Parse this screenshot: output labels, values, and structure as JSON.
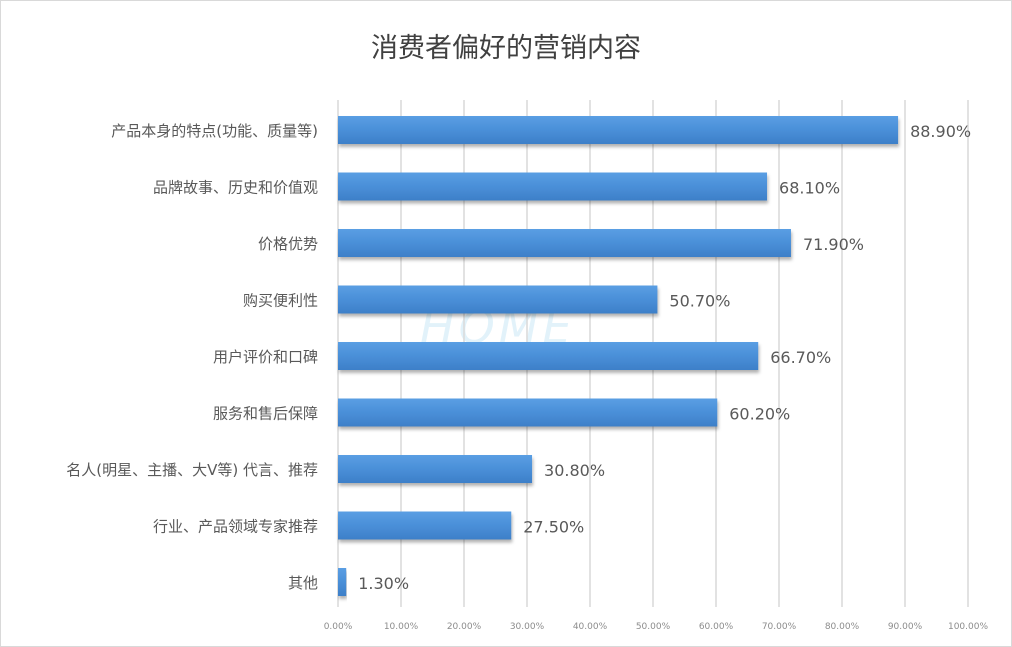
{
  "chart_data": {
    "type": "bar",
    "orientation": "horizontal",
    "title": "消费者偏好的营销内容",
    "categories": [
      "产品本身的特点(功能、质量等)",
      "品牌故事、历史和价值观",
      "价格优势",
      "购买便利性",
      "用户评价和口碑",
      "服务和售后保障",
      "名人(明星、主播、大V等) 代言、推荐",
      "行业、产品领域专家推荐",
      "其他"
    ],
    "values": [
      88.9,
      68.1,
      71.9,
      50.7,
      66.7,
      60.2,
      30.8,
      27.5,
      1.3
    ],
    "data_labels": [
      "88.90%",
      "68.10%",
      "71.90%",
      "50.70%",
      "66.70%",
      "60.20%",
      "30.80%",
      "27.50%",
      "1.30%"
    ],
    "x_ticks": [
      "0.00%",
      "10.00%",
      "20.00%",
      "30.00%",
      "40.00%",
      "50.00%",
      "60.00%",
      "70.00%",
      "80.00%",
      "90.00%",
      "100.00%"
    ],
    "xlim": [
      0,
      100
    ],
    "xlabel": "",
    "ylabel": "",
    "grid": true,
    "legend": "none",
    "bar_color": "#4a8fd8"
  },
  "watermark": "HOME"
}
